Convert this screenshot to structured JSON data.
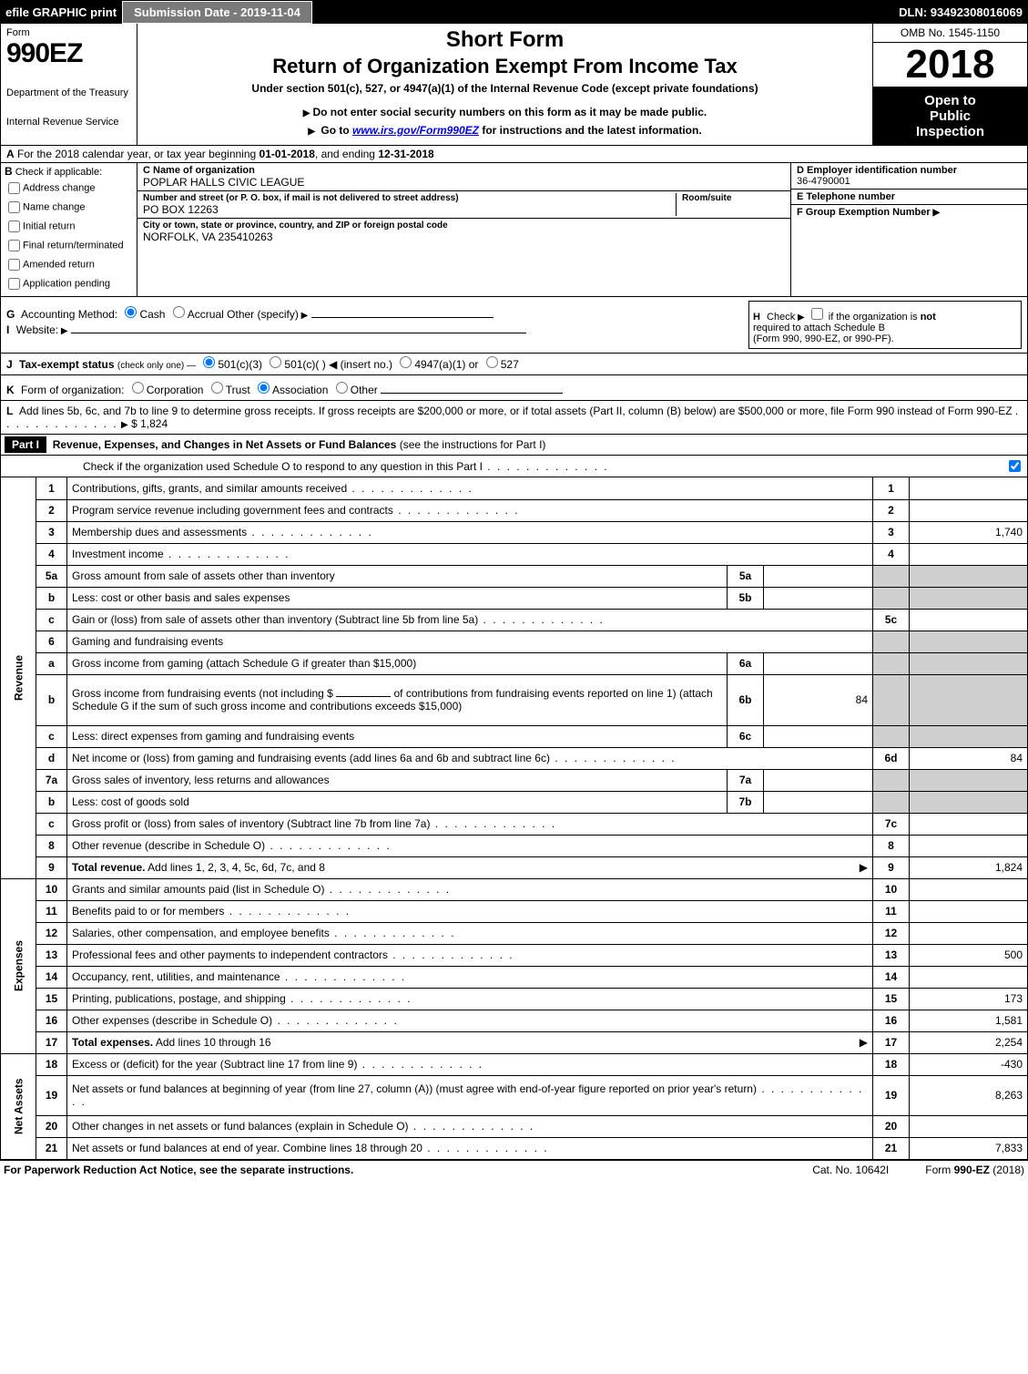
{
  "topbar": {
    "efile": "efile GRAPHIC print",
    "submission": "Submission Date - 2019-11-04",
    "dln": "DLN: 93492308016069"
  },
  "header": {
    "form_word": "Form",
    "form_code": "990EZ",
    "dept": "Department of the Treasury",
    "irs": "Internal Revenue Service",
    "short": "Short Form",
    "return_title": "Return of Organization Exempt From Income Tax",
    "under": "Under section 501(c), 527, or 4947(a)(1) of the Internal Revenue Code (except private foundations)",
    "warn": "Do not enter social security numbers on this form as it may be made public.",
    "goto_pre": "Go to ",
    "goto_link": "www.irs.gov/Form990EZ",
    "goto_post": " for instructions and the latest information.",
    "omb": "OMB No. 1545-1150",
    "year": "2018",
    "inspect_1": "Open to",
    "inspect_2": "Public",
    "inspect_3": "Inspection"
  },
  "rowA": {
    "label": "A",
    "text_pre": "For the 2018 calendar year, or tax year beginning ",
    "begin": "01-01-2018",
    "mid": ", and ending ",
    "end": "12-31-2018"
  },
  "blockB": {
    "letter": "B",
    "check_label": "Check if applicable:",
    "opts": [
      "Address change",
      "Name change",
      "Initial return",
      "Final return/terminated",
      "Amended return",
      "Application pending"
    ]
  },
  "blockC": {
    "name_label": "C Name of organization",
    "name_val": "POPLAR HALLS CIVIC LEAGUE",
    "street_label": "Number and street (or P. O. box, if mail is not delivered to street address)",
    "street_val": "PO BOX 12263",
    "room_label": "Room/suite",
    "city_label": "City or town, state or province, country, and ZIP or foreign postal code",
    "city_val": "NORFOLK, VA  235410263"
  },
  "blockD": {
    "ein_label": "D Employer identification number",
    "ein_val": "36-4790001",
    "tel_label": "E Telephone number",
    "grp_label": "F Group Exemption Number"
  },
  "lineG": {
    "letter": "G",
    "text": "Accounting Method:",
    "opts": [
      "Cash",
      "Accrual"
    ],
    "other": "Other (specify)"
  },
  "lineH": {
    "letter": "H",
    "text_pre": "Check",
    "text_post": "if the organization is ",
    "not": "not",
    "rest1": "required to attach Schedule B",
    "rest2": "(Form 990, 990-EZ, or 990-PF)."
  },
  "lineI": {
    "letter": "I",
    "text": "Website:"
  },
  "lineJ": {
    "letter": "J",
    "text": "Tax-exempt status",
    "sub": "(check only one) —",
    "opts": [
      "501(c)(3)",
      "501(c)(  )",
      "(insert no.)",
      "4947(a)(1) or",
      "527"
    ]
  },
  "lineK": {
    "letter": "K",
    "text": "Form of organization:",
    "opts": [
      "Corporation",
      "Trust",
      "Association",
      "Other"
    ]
  },
  "lineL": {
    "letter": "L",
    "text": "Add lines 5b, 6c, and 7b to line 9 to determine gross receipts. If gross receipts are $200,000 or more, or if total assets (Part II, column (B) below) are $500,000 or more, file Form 990 instead of Form 990-EZ",
    "amt": "$ 1,824"
  },
  "part1": {
    "badge": "Part I",
    "title": "Revenue, Expenses, and Changes in Net Assets or Fund Balances",
    "paren": "(see the instructions for Part I)",
    "check_line": "Check if the organization used Schedule O to respond to any question in this Part I"
  },
  "sections": {
    "revenue": "Revenue",
    "expenses": "Expenses",
    "netassets": "Net Assets"
  },
  "rows": [
    {
      "n": "1",
      "d": "Contributions, gifts, grants, and similar amounts received",
      "ln": "1",
      "amt": ""
    },
    {
      "n": "2",
      "d": "Program service revenue including government fees and contracts",
      "ln": "2",
      "amt": ""
    },
    {
      "n": "3",
      "d": "Membership dues and assessments",
      "ln": "3",
      "amt": "1,740"
    },
    {
      "n": "4",
      "d": "Investment income",
      "ln": "4",
      "amt": ""
    },
    {
      "n": "5a",
      "d": "Gross amount from sale of assets other than inventory",
      "sb": "5a",
      "sv": "",
      "shade": true
    },
    {
      "n": "b",
      "d": "Less: cost or other basis and sales expenses",
      "sb": "5b",
      "sv": "",
      "shade": true
    },
    {
      "n": "c",
      "d": "Gain or (loss) from sale of assets other than inventory (Subtract line 5b from line 5a)",
      "ln": "5c",
      "amt": ""
    },
    {
      "n": "6",
      "d": "Gaming and fundraising events",
      "shade": true,
      "noln": true
    },
    {
      "n": "a",
      "d": "Gross income from gaming (attach Schedule G if greater than $15,000)",
      "sb": "6a",
      "sv": "",
      "shade": true
    },
    {
      "n": "b",
      "d_pre": "Gross income from fundraising events (not including $ ",
      "d_mid": " of contributions from fundraising events reported on line 1) (attach Schedule G if the sum of such gross income and contributions exceeds $15,000)",
      "sb": "6b",
      "sv": "84",
      "shade": true,
      "tall": true
    },
    {
      "n": "c",
      "d": "Less: direct expenses from gaming and fundraising events",
      "sb": "6c",
      "sv": "",
      "shade": true
    },
    {
      "n": "d",
      "d": "Net income or (loss) from gaming and fundraising events (add lines 6a and 6b and subtract line 6c)",
      "ln": "6d",
      "amt": "84"
    },
    {
      "n": "7a",
      "d": "Gross sales of inventory, less returns and allowances",
      "sb": "7a",
      "sv": "",
      "shade": true
    },
    {
      "n": "b",
      "d": "Less: cost of goods sold",
      "sb": "7b",
      "sv": "",
      "shade": true
    },
    {
      "n": "c",
      "d": "Gross profit or (loss) from sales of inventory (Subtract line 7b from line 7a)",
      "ln": "7c",
      "amt": ""
    },
    {
      "n": "8",
      "d": "Other revenue (describe in Schedule O)",
      "ln": "8",
      "amt": ""
    },
    {
      "n": "9",
      "d": "Total revenue. Add lines 1, 2, 3, 4, 5c, 6d, 7c, and 8",
      "ln": "9",
      "amt": "1,824",
      "bold": true,
      "arrow": true
    }
  ],
  "exp_rows": [
    {
      "n": "10",
      "d": "Grants and similar amounts paid (list in Schedule O)",
      "ln": "10",
      "amt": ""
    },
    {
      "n": "11",
      "d": "Benefits paid to or for members",
      "ln": "11",
      "amt": ""
    },
    {
      "n": "12",
      "d": "Salaries, other compensation, and employee benefits",
      "ln": "12",
      "amt": ""
    },
    {
      "n": "13",
      "d": "Professional fees and other payments to independent contractors",
      "ln": "13",
      "amt": "500"
    },
    {
      "n": "14",
      "d": "Occupancy, rent, utilities, and maintenance",
      "ln": "14",
      "amt": ""
    },
    {
      "n": "15",
      "d": "Printing, publications, postage, and shipping",
      "ln": "15",
      "amt": "173"
    },
    {
      "n": "16",
      "d": "Other expenses (describe in Schedule O)",
      "ln": "16",
      "amt": "1,581"
    },
    {
      "n": "17",
      "d": "Total expenses. Add lines 10 through 16",
      "ln": "17",
      "amt": "2,254",
      "bold": true,
      "arrow": true
    }
  ],
  "na_rows": [
    {
      "n": "18",
      "d": "Excess or (deficit) for the year (Subtract line 17 from line 9)",
      "ln": "18",
      "amt": "-430"
    },
    {
      "n": "19",
      "d": "Net assets or fund balances at beginning of year (from line 27, column (A)) (must agree with end-of-year figure reported on prior year's return)",
      "ln": "19",
      "amt": "8,263",
      "tall": true
    },
    {
      "n": "20",
      "d": "Other changes in net assets or fund balances (explain in Schedule O)",
      "ln": "20",
      "amt": ""
    },
    {
      "n": "21",
      "d": "Net assets or fund balances at end of year. Combine lines 18 through 20",
      "ln": "21",
      "amt": "7,833"
    }
  ],
  "footer": {
    "left": "For Paperwork Reduction Act Notice, see the separate instructions.",
    "center": "Cat. No. 10642I",
    "right_pre": "Form ",
    "right_code": "990-EZ",
    "right_post": " (2018)"
  }
}
